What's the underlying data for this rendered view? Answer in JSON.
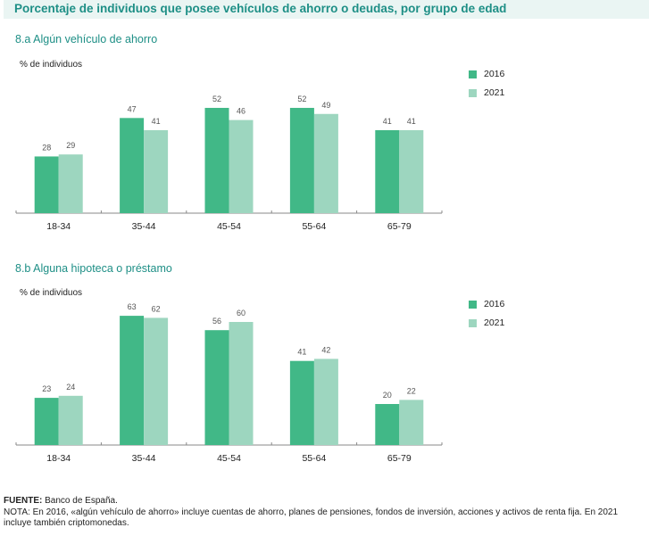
{
  "title": "Porcentaje de individuos que posee vehículos de ahorro o deudas, por grupo de edad",
  "colors": {
    "s2016": "#41b887",
    "s2021": "#9dd6bf",
    "title": "#1e8f86",
    "axis": "#888888",
    "label": "#555555"
  },
  "legend": [
    {
      "label": "2016"
    },
    {
      "label": "2021"
    }
  ],
  "chart_data": [
    {
      "type": "bar",
      "title": "8.a  Algún vehículo de ahorro",
      "ylabel": "% de individuos",
      "xlabel": "",
      "categories": [
        "18-34",
        "35-44",
        "45-54",
        "55-64",
        "65-79"
      ],
      "series": [
        {
          "name": "2016",
          "values": [
            28,
            47,
            52,
            52,
            41
          ]
        },
        {
          "name": "2021",
          "values": [
            29,
            41,
            46,
            49,
            41
          ]
        }
      ],
      "ylim": [
        0,
        60
      ],
      "grid": false,
      "legend_position": "top-right"
    },
    {
      "type": "bar",
      "title": "8.b  Alguna hipoteca o préstamo",
      "ylabel": "% de individuos",
      "xlabel": "",
      "categories": [
        "18-34",
        "35-44",
        "45-54",
        "55-64",
        "65-79"
      ],
      "series": [
        {
          "name": "2016",
          "values": [
            23,
            63,
            56,
            41,
            20
          ]
        },
        {
          "name": "2021",
          "values": [
            24,
            62,
            60,
            42,
            22
          ]
        }
      ],
      "ylim": [
        0,
        70
      ],
      "grid": false,
      "legend_position": "top-right"
    }
  ],
  "footer": {
    "source_label": "FUENTE:",
    "source_text": " Banco de España.",
    "note": "NOTA: En 2016, «algún vehículo de ahorro» incluye cuentas de ahorro, planes de pensiones, fondos de inversión, acciones y activos de renta fija. En 2021 incluye también criptomonedas."
  }
}
